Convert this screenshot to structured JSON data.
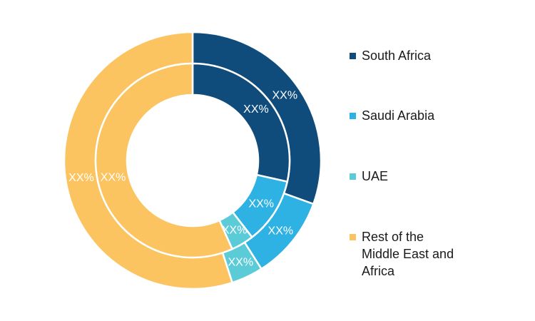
{
  "chart_data": {
    "type": "pie",
    "variant": "nested-donut",
    "categories": [
      "South Africa",
      "Saudi Arabia",
      "UAE",
      "Rest of the Middle East and Africa"
    ],
    "colors": [
      "#0f4c7c",
      "#2eb1e3",
      "#5ccbd8",
      "#fbc460"
    ],
    "series": [
      {
        "ring": "outer",
        "values": [
          30.5,
          10.5,
          4.0,
          55.0
        ],
        "labels": [
          "XX%",
          "XX%",
          "XX%",
          "XX%"
        ]
      },
      {
        "ring": "inner",
        "values": [
          28.5,
          11.0,
          3.8,
          56.7
        ],
        "labels": [
          "XX%",
          "XX%",
          "XX%",
          "XX%"
        ]
      }
    ],
    "legend_position": "right"
  },
  "legend": {
    "items": [
      {
        "label": "South Africa",
        "color": "#0f4c7c"
      },
      {
        "label": "Saudi Arabia",
        "color": "#2eb1e3"
      },
      {
        "label": "UAE",
        "color": "#5ccbd8"
      },
      {
        "label": "Rest of the Middle East and Africa",
        "color": "#fbc460"
      }
    ]
  }
}
